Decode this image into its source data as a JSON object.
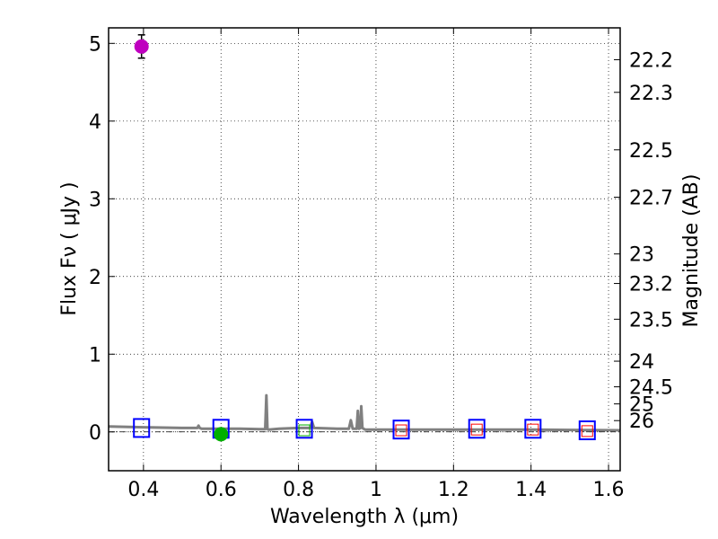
{
  "chart_data": {
    "type": "scatter",
    "xlabel": "Wavelength  λ (μm)",
    "ylabel": "Flux  Fν  ( μJy )",
    "y2label": "Magnitude (AB)",
    "xlim": [
      0.31,
      1.63
    ],
    "ylim": [
      -0.5,
      5.2
    ],
    "grid": true,
    "x_ticks": [
      0.4,
      0.6,
      0.8,
      1.0,
      1.2,
      1.4,
      1.6
    ],
    "x_tick_labels": [
      "0.4",
      "0.6",
      "0.8",
      "1",
      "1.2",
      "1.4",
      "1.6"
    ],
    "y_ticks": [
      0,
      1,
      2,
      3,
      4,
      5
    ],
    "y_tick_labels": [
      "0",
      "1",
      "2",
      "3",
      "4",
      "5"
    ],
    "y2_ticks": [
      {
        "label": "22.2",
        "flux": 4.79
      },
      {
        "label": "22.3",
        "flux": 4.37
      },
      {
        "label": "22.5",
        "flux": 3.63
      },
      {
        "label": "22.7",
        "flux": 3.02
      },
      {
        "label": "23",
        "flux": 2.29
      },
      {
        "label": "23.2",
        "flux": 1.91
      },
      {
        "label": "23.5",
        "flux": 1.45
      },
      {
        "label": "24",
        "flux": 0.91
      },
      {
        "label": "24.5",
        "flux": 0.58
      },
      {
        "label": "25",
        "flux": 0.36
      },
      {
        "label": "26",
        "flux": 0.145
      }
    ],
    "zero_line": 0.0,
    "series": [
      {
        "name": "model spectrum",
        "kind": "line",
        "color": "#808080",
        "x": [
          0.31,
          0.4,
          0.5,
          0.539,
          0.542,
          0.545,
          0.55,
          0.6,
          0.65,
          0.7,
          0.714,
          0.717,
          0.72,
          0.723,
          0.75,
          0.8,
          0.83,
          0.835,
          0.84,
          0.9,
          0.93,
          0.935,
          0.94,
          0.945,
          0.95,
          0.953,
          0.956,
          0.96,
          0.962,
          0.965,
          0.968,
          0.972,
          0.98,
          1.0,
          1.1,
          1.2,
          1.3,
          1.4,
          1.5,
          1.63
        ],
        "y": [
          0.07,
          0.06,
          0.05,
          0.05,
          0.08,
          0.05,
          0.04,
          0.04,
          0.04,
          0.035,
          0.035,
          0.47,
          0.035,
          0.03,
          0.04,
          0.05,
          0.05,
          0.13,
          0.05,
          0.04,
          0.04,
          0.15,
          0.04,
          0.04,
          0.04,
          0.27,
          0.04,
          0.05,
          0.33,
          0.05,
          0.04,
          0.03,
          0.03,
          0.03,
          0.03,
          0.03,
          0.03,
          0.03,
          0.025,
          0.02
        ]
      },
      {
        "name": "model photometry",
        "kind": "square",
        "color": "#0000ff",
        "x": [
          0.395,
          0.6,
          0.815,
          1.065,
          1.26,
          1.405,
          1.545
        ],
        "y": [
          0.05,
          0.04,
          0.04,
          0.03,
          0.04,
          0.04,
          0.02
        ]
      },
      {
        "name": "upper limits",
        "kind": "small-square",
        "color": "#ff0000",
        "x": [
          1.065,
          1.26,
          1.405,
          1.545
        ],
        "y": [
          0.02,
          0.03,
          0.03,
          0.01
        ]
      },
      {
        "name": "observed detection",
        "kind": "circle",
        "color": "#bf00bf",
        "x": [
          0.395
        ],
        "y": [
          4.96
        ],
        "yerr": [
          0.15
        ]
      },
      {
        "name": "observed faint",
        "kind": "circle",
        "color": "#00b000",
        "x": [
          0.6
        ],
        "y": [
          -0.03
        ],
        "yerr": [
          0.03
        ]
      },
      {
        "name": "faint square",
        "kind": "small-square",
        "color": "#00b000",
        "x": [
          0.815
        ],
        "y": [
          0.02
        ]
      }
    ]
  }
}
